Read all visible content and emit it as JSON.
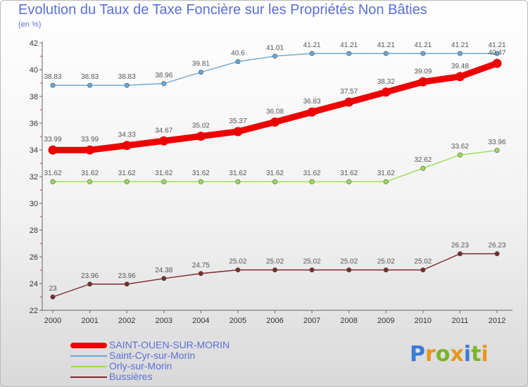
{
  "title": "Evolution du Taux de Taxe Foncière sur les Propriétés Non Bâties",
  "subtitle": "(en %)",
  "logo": {
    "text": "Proxiti",
    "colors": [
      "#3a7bd5",
      "#e8961e",
      "#7ab526",
      "#e8961e",
      "#3a7bd5",
      "#7ab526",
      "#e8961e"
    ]
  },
  "chart_data": {
    "type": "line",
    "title": "Evolution du Taux de Taxe Foncière sur les Propriétés Non Bâties",
    "ylabel": "(en %)",
    "xlabel": "",
    "x": [
      "2000",
      "2001",
      "2002",
      "2003",
      "2004",
      "2005",
      "2006",
      "2007",
      "2008",
      "2009",
      "2010",
      "2011",
      "2012"
    ],
    "ylim": [
      22,
      42
    ],
    "yticks": [
      22,
      24,
      26,
      28,
      30,
      32,
      34,
      36,
      38,
      40,
      42
    ],
    "grid": false,
    "legend_position": "bottom-left",
    "series": [
      {
        "name": "SAINT-OUEN-SUR-MORIN",
        "color": "#ee0000",
        "emphasis": true,
        "values": [
          33.99,
          33.99,
          34.33,
          34.67,
          35.02,
          35.37,
          36.08,
          36.83,
          37.57,
          38.32,
          39.09,
          39.48,
          40.47
        ],
        "labels": [
          "33.99",
          "33.99",
          "34.33",
          "34.67",
          "35.02",
          "35.37",
          "36.08",
          "36.83",
          "37.57",
          "38.32",
          "39.09",
          "39.48",
          "40.47"
        ]
      },
      {
        "name": "Saint-Cyr-sur-Morin",
        "color": "#6aa6d6",
        "values": [
          38.83,
          38.83,
          38.83,
          38.96,
          39.81,
          40.6,
          41.01,
          41.21,
          41.21,
          41.21,
          41.21,
          41.21,
          41.21
        ],
        "labels": [
          "38.83",
          "38.83",
          "38.83",
          "38.96",
          "39.81",
          "40.6",
          "41.01",
          "41.21",
          "41.21",
          "41.21",
          "41.21",
          "41.21",
          "41.21"
        ]
      },
      {
        "name": "Orly-sur-Morin",
        "color": "#99dd55",
        "values": [
          31.62,
          31.62,
          31.62,
          31.62,
          31.62,
          31.62,
          31.62,
          31.62,
          31.62,
          31.62,
          32.62,
          33.62,
          33.96
        ],
        "labels": [
          "31.62",
          "31.62",
          "31.62",
          "31.62",
          "31.62",
          "31.62",
          "31.62",
          "31.62",
          "31.62",
          "31.62",
          "32.62",
          "33.62",
          "33.96"
        ]
      },
      {
        "name": "Bussières",
        "color": "#7a2a2a",
        "values": [
          23,
          23.96,
          23.96,
          24.38,
          24.75,
          25.02,
          25.02,
          25.02,
          25.02,
          25.02,
          25.02,
          26.23,
          26.23
        ],
        "labels": [
          "23",
          "23.96",
          "23.96",
          "24.38",
          "24.75",
          "25.02",
          "25.02",
          "25.02",
          "25.02",
          "25.02",
          "25.02",
          "26.23",
          "26.23"
        ]
      }
    ]
  }
}
